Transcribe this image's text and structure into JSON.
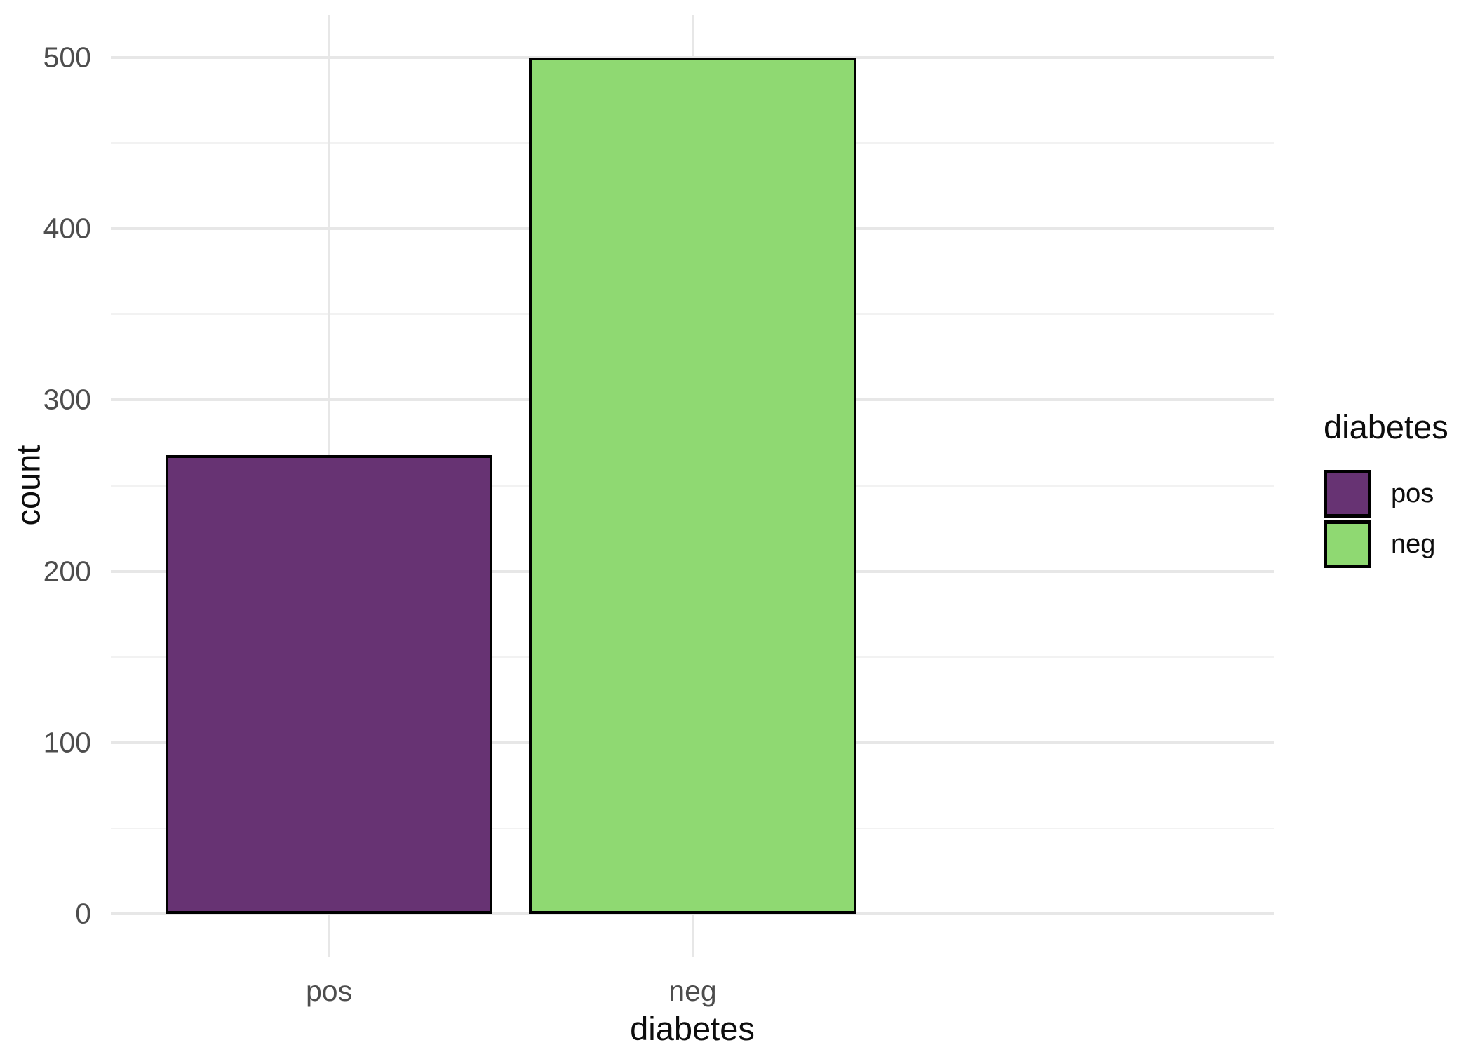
{
  "figure": {
    "background_color": "#ffffff",
    "x_axis_title": "diabetes",
    "y_axis_title": "count"
  },
  "legend": {
    "title": "diabetes",
    "position": "right",
    "entries": [
      {
        "label": "pos",
        "color": "#673373"
      },
      {
        "label": "neg",
        "color": "#8fd972"
      }
    ]
  },
  "chart_data": {
    "type": "bar",
    "title": "",
    "xlabel": "diabetes",
    "ylabel": "count",
    "categories": [
      "pos",
      "neg"
    ],
    "values": [
      268,
      500
    ],
    "bar_colors": [
      "#673373",
      "#8fd972"
    ],
    "bar_border_color": "#000000",
    "ylim": [
      0,
      500
    ],
    "yticks": [
      0,
      100,
      200,
      300,
      400,
      500
    ],
    "y_minor_ticks": [
      50,
      150,
      250,
      350,
      450
    ],
    "grid": "on",
    "gridline_color_major": "#e7e7e7",
    "gridline_color_minor": "#f2f2f2",
    "tick_label_color": "#4d4d4d",
    "legend_position": "right",
    "legend_title": "diabetes"
  }
}
